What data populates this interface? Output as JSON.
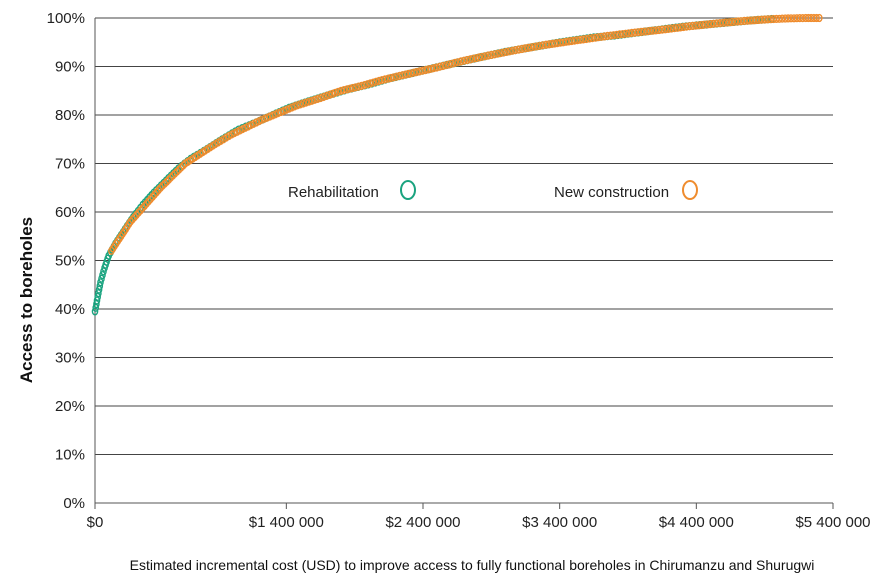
{
  "chart_data": {
    "type": "scatter",
    "title": "",
    "xlabel": "Estimated incremental cost (USD) to improve access to fully functional boreholes in Chirumanzu and Shurugwi",
    "ylabel": "Access to boreholes",
    "xlim": [
      0,
      5400000
    ],
    "ylim": [
      0,
      100
    ],
    "x_ticks": [
      0,
      1400000,
      2400000,
      3400000,
      4400000,
      5400000
    ],
    "x_tick_labels": [
      "$0",
      "$1 400 000",
      "$2 400 000",
      "$3 400 000",
      "$4 400 000",
      "$5 400 000"
    ],
    "y_ticks": [
      0,
      10,
      20,
      30,
      40,
      50,
      60,
      70,
      80,
      90,
      100
    ],
    "y_tick_labels": [
      "0%",
      "10%",
      "20%",
      "30%",
      "40%",
      "50%",
      "60%",
      "70%",
      "80%",
      "90%",
      "100%"
    ],
    "grid": "horizontal",
    "legend_position": "middle",
    "series": [
      {
        "name": "Rehabilitation",
        "color": "#1aa37f",
        "marker": "open-circle",
        "points": [
          [
            0,
            39.5
          ],
          [
            10000,
            41
          ],
          [
            20000,
            42.5
          ],
          [
            30000,
            44
          ],
          [
            40000,
            45.5
          ],
          [
            55000,
            47
          ],
          [
            70000,
            48.5
          ],
          [
            100000,
            51
          ],
          [
            150000,
            53.5
          ],
          [
            220000,
            56.5
          ],
          [
            280000,
            59
          ],
          [
            350000,
            61.5
          ],
          [
            430000,
            64
          ],
          [
            520000,
            66.5
          ],
          [
            610000,
            69
          ],
          [
            700000,
            71
          ],
          [
            820000,
            73
          ],
          [
            930000,
            75
          ],
          [
            1050000,
            77
          ],
          [
            1180000,
            78.5
          ],
          [
            1300000,
            80
          ],
          [
            1420000,
            81.5
          ],
          [
            1560000,
            82.8
          ],
          [
            1720000,
            84.2
          ],
          [
            1850000,
            85.3
          ],
          [
            2000000,
            86.3
          ],
          [
            2150000,
            87.5
          ],
          [
            2300000,
            88.5
          ],
          [
            2420000,
            89.3
          ],
          [
            2600000,
            90.5
          ],
          [
            2800000,
            91.8
          ],
          [
            3000000,
            93
          ],
          [
            3200000,
            94
          ],
          [
            3450000,
            95.2
          ],
          [
            3650000,
            96
          ],
          [
            3800000,
            96.4
          ],
          [
            4050000,
            97.3
          ],
          [
            4300000,
            98.2
          ],
          [
            4450000,
            98.6
          ],
          [
            4600000,
            99
          ],
          [
            4800000,
            99.5
          ],
          [
            4950000,
            99.8
          ]
        ]
      },
      {
        "name": "New construction",
        "color": "#ef8c2e",
        "marker": "open-circle",
        "points": [
          [
            120000,
            52
          ],
          [
            260000,
            58
          ],
          [
            480000,
            65
          ],
          [
            660000,
            70
          ],
          [
            880000,
            74
          ],
          [
            1000000,
            76
          ],
          [
            1220000,
            79
          ],
          [
            1480000,
            82
          ],
          [
            1650000,
            83.5
          ],
          [
            1800000,
            85
          ],
          [
            1950000,
            86
          ],
          [
            2100000,
            87.2
          ],
          [
            2250000,
            88.2
          ],
          [
            2500000,
            89.8
          ],
          [
            2700000,
            91.2
          ],
          [
            2900000,
            92.4
          ],
          [
            3100000,
            93.5
          ],
          [
            3300000,
            94.5
          ],
          [
            3550000,
            95.5
          ],
          [
            3750000,
            96.3
          ],
          [
            3950000,
            97
          ],
          [
            4150000,
            97.6
          ],
          [
            4350000,
            98.3
          ],
          [
            4550000,
            98.9
          ],
          [
            4750000,
            99.4
          ],
          [
            4900000,
            99.7
          ],
          [
            5050000,
            99.9
          ],
          [
            5200000,
            100
          ],
          [
            5300000,
            100
          ]
        ]
      }
    ]
  }
}
